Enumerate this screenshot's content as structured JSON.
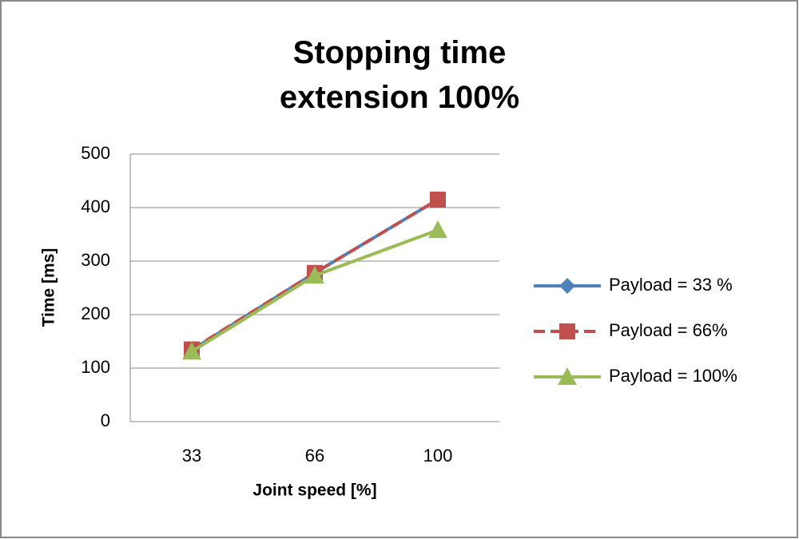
{
  "chart_data": {
    "type": "line",
    "title": "Stopping time extension 100%",
    "x_label": "Joint speed [%]",
    "y_label": "Time [ms]",
    "categories": [
      "33",
      "66",
      "100"
    ],
    "series": [
      {
        "name": "Payload = 33 %",
        "color": "#4f81bd",
        "marker": "diamond",
        "dash": false,
        "values": [
          134,
          278,
          415
        ]
      },
      {
        "name": "Payload =  66%",
        "color": "#c0504d",
        "marker": "square",
        "dash": true,
        "values": [
          135,
          278,
          415
        ]
      },
      {
        "name": "Payload =  100%",
        "color": "#9bbb59",
        "marker": "triangle",
        "dash": false,
        "values": [
          131,
          273,
          358
        ]
      }
    ],
    "ylim": [
      0,
      500
    ],
    "yticks": [
      0,
      100,
      200,
      300,
      400,
      500
    ],
    "grid": true,
    "legend": "right"
  }
}
